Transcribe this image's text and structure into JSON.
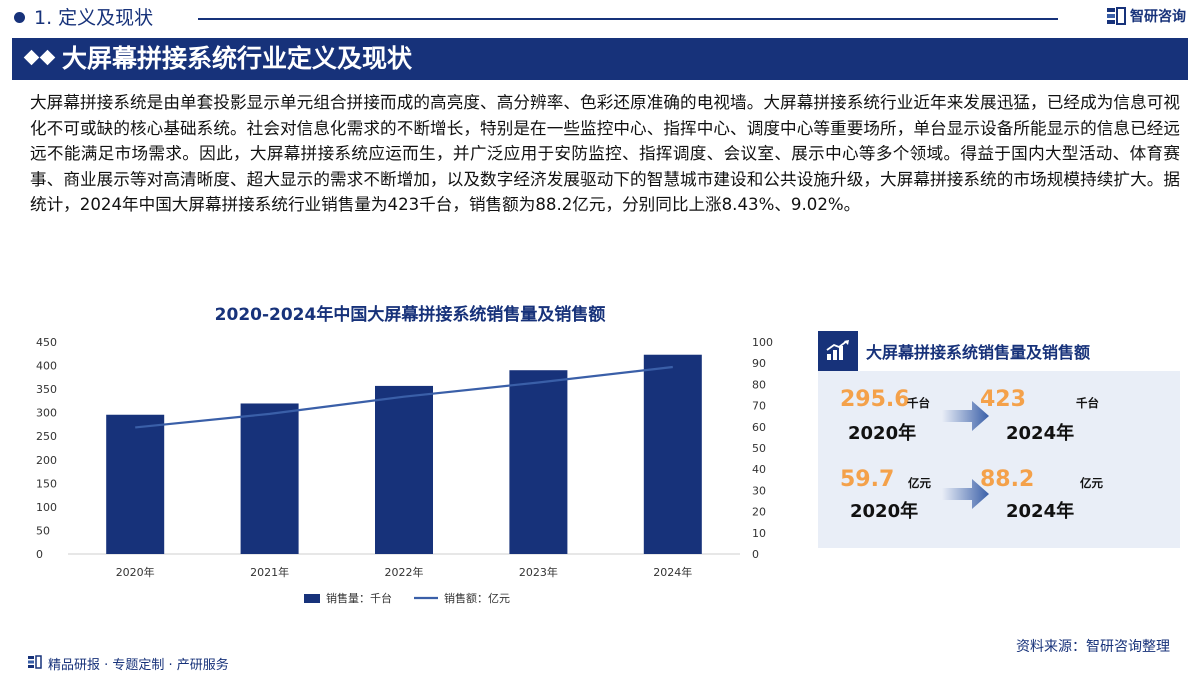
{
  "header": {
    "section_title": "1. 定义及现状",
    "brand": "智研咨询"
  },
  "banner": {
    "title": "大屏幕拼接系统行业定义及现状"
  },
  "intro": "大屏幕拼接系统是由单套投影显示单元组合拼接而成的高亮度、高分辨率、色彩还原准确的电视墙。大屏幕拼接系统行业近年来发展迅猛，已经成为信息可视化不可或缺的核心基础系统。社会对信息化需求的不断增长，特别是在一些监控中心、指挥中心、调度中心等重要场所，单台显示设备所能显示的信息已经远远不能满足市场需求。因此，大屏幕拼接系统应运而生，并广泛应用于安防监控、指挥调度、会议室、展示中心等多个领域。得益于国内大型活动、体育赛事、商业展示等对高清晰度、超大显示的需求不断增加，以及数字经济发展驱动下的智慧城市建设和公共设施升级，大屏幕拼接系统的市场规模持续扩大。据统计，2024年中国大屏幕拼接系统行业销售量为423千台，销售额为88.2亿元，分别同比上涨8.43%、9.02%。",
  "chart_data": {
    "type": "bar",
    "title": "2020-2024年中国大屏幕拼接系统销售量及销售额",
    "categories": [
      "2020年",
      "2021年",
      "2022年",
      "2023年",
      "2024年"
    ],
    "series": [
      {
        "name": "销售量：千台",
        "type": "bar",
        "axis": "left",
        "values": [
          295.6,
          319.5,
          356.8,
          390.1,
          423.0
        ],
        "color": "#17327a"
      },
      {
        "name": "销售额：亿元",
        "type": "line",
        "axis": "right",
        "values": [
          59.7,
          66.1,
          74.2,
          80.9,
          88.2
        ],
        "color": "#3a5fa8"
      }
    ],
    "y_left": {
      "min": 0,
      "max": 450,
      "ticks": [
        0,
        50,
        100,
        150,
        200,
        250,
        300,
        350,
        400,
        450
      ]
    },
    "y_right": {
      "min": 0,
      "max": 100,
      "ticks": [
        0,
        10,
        20,
        30,
        40,
        50,
        60,
        70,
        80,
        90,
        100
      ]
    },
    "legend_position": "bottom",
    "grid": false
  },
  "card": {
    "title": "大屏幕拼接系统销售量及销售额",
    "icon": "chart-growth-icon",
    "rows": [
      {
        "from_value": "295.6",
        "from_unit": "千台",
        "from_year": "2020年",
        "to_value": "423",
        "to_unit": "千台",
        "to_year": "2024年"
      },
      {
        "from_value": "59.7",
        "from_unit": "亿元",
        "from_year": "2020年",
        "to_value": "88.2",
        "to_unit": "亿元",
        "to_year": "2024年"
      }
    ]
  },
  "source": "资料来源：智研咨询整理",
  "footer": "精品研报 · 专题定制 · 产研服务",
  "colors": {
    "primary": "#17327a",
    "accent": "#f4a14a",
    "card_bg": "#e9eef7"
  }
}
